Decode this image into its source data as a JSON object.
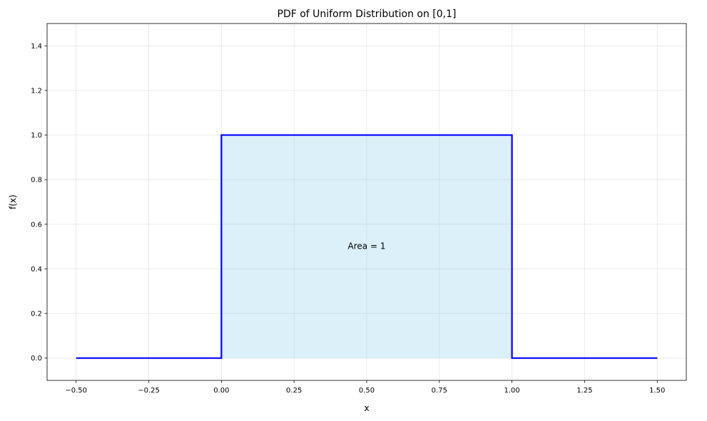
{
  "chart_data": {
    "type": "line",
    "title": "PDF of Uniform Distribution on [0,1]",
    "xlabel": "x",
    "ylabel": "f(x)",
    "xlim": [
      -0.6,
      1.6
    ],
    "ylim": [
      -0.1,
      1.5
    ],
    "xticks": [
      -0.5,
      -0.25,
      0.0,
      0.25,
      0.5,
      0.75,
      1.0,
      1.25,
      1.5
    ],
    "xtick_labels": [
      "−0.50",
      "−0.25",
      "0.00",
      "0.25",
      "0.50",
      "0.75",
      "1.00",
      "1.25",
      "1.50"
    ],
    "yticks": [
      0.0,
      0.2,
      0.4,
      0.6,
      0.8,
      1.0,
      1.2,
      1.4
    ],
    "ytick_labels": [
      "0.0",
      "0.2",
      "0.4",
      "0.6",
      "0.8",
      "1.0",
      "1.2",
      "1.4"
    ],
    "grid": true,
    "series": [
      {
        "x": [
          -0.5,
          0.0,
          0.0,
          1.0,
          1.0,
          1.5
        ],
        "y": [
          0,
          0,
          1,
          1,
          0,
          0
        ],
        "color": "#0000ff"
      }
    ],
    "fill": {
      "x_from": 0.0,
      "x_to": 1.0,
      "y": 1.0,
      "color": "#87ceeb"
    },
    "annotation": {
      "text": "Area = 1",
      "x": 0.5,
      "y": 0.5
    }
  }
}
